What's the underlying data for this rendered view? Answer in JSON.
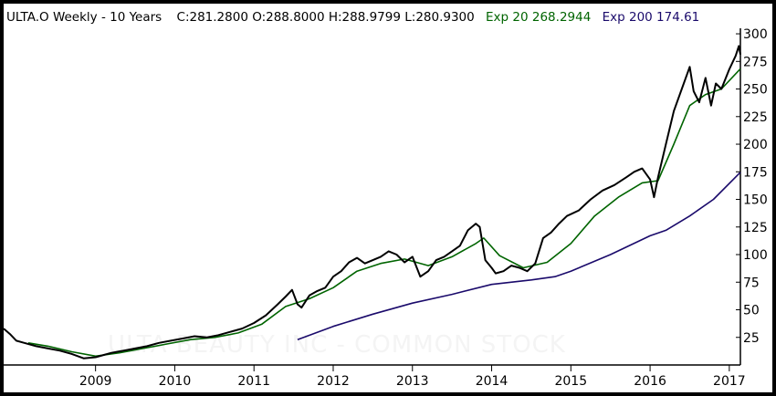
{
  "header": {
    "symbol_label": "ULTA.O Weekly -  10 Years",
    "ohlc_label": "C:281.2800 O:288.8000 H:288.9799 L:280.9300",
    "exp20_label": "Exp 20 268.2944",
    "exp200_label": "Exp 200 174.61",
    "exp20_color": "#006400",
    "exp200_color": "#1a0a6b",
    "text_color": "#000000"
  },
  "watermark": "ULTA BEAUTY INC - COMMON STOCK",
  "chart_data": {
    "type": "line",
    "title": "ULTA.O Weekly -  10 Years",
    "xlabel": "",
    "ylabel": "",
    "xlim": [
      2007.84,
      2017.14
    ],
    "ylim": [
      0,
      305
    ],
    "y_axis_position": "right",
    "grid": false,
    "x_ticks": [
      "2009",
      "2010",
      "2011",
      "2012",
      "2013",
      "2014",
      "2015",
      "2016",
      "2017"
    ],
    "y_ticks": [
      25,
      50,
      75,
      100,
      125,
      150,
      175,
      200,
      225,
      250,
      275,
      300
    ],
    "series": [
      {
        "name": "ULTA.O",
        "color": "#000000",
        "points": [
          [
            2007.84,
            33
          ],
          [
            2007.92,
            28
          ],
          [
            2008.0,
            22
          ],
          [
            2008.1,
            20
          ],
          [
            2008.25,
            17
          ],
          [
            2008.4,
            15
          ],
          [
            2008.55,
            13
          ],
          [
            2008.7,
            10
          ],
          [
            2008.85,
            6
          ],
          [
            2009.0,
            7
          ],
          [
            2009.1,
            9
          ],
          [
            2009.2,
            11
          ],
          [
            2009.35,
            13
          ],
          [
            2009.5,
            15
          ],
          [
            2009.65,
            17
          ],
          [
            2009.8,
            20
          ],
          [
            2009.95,
            22
          ],
          [
            2010.1,
            24
          ],
          [
            2010.25,
            26
          ],
          [
            2010.4,
            25
          ],
          [
            2010.55,
            27
          ],
          [
            2010.7,
            30
          ],
          [
            2010.85,
            33
          ],
          [
            2011.0,
            38
          ],
          [
            2011.15,
            45
          ],
          [
            2011.3,
            55
          ],
          [
            2011.4,
            62
          ],
          [
            2011.48,
            68
          ],
          [
            2011.55,
            55
          ],
          [
            2011.6,
            52
          ],
          [
            2011.7,
            63
          ],
          [
            2011.8,
            67
          ],
          [
            2011.9,
            70
          ],
          [
            2012.0,
            80
          ],
          [
            2012.1,
            85
          ],
          [
            2012.2,
            93
          ],
          [
            2012.3,
            97
          ],
          [
            2012.4,
            92
          ],
          [
            2012.5,
            95
          ],
          [
            2012.6,
            98
          ],
          [
            2012.7,
            103
          ],
          [
            2012.8,
            100
          ],
          [
            2012.9,
            93
          ],
          [
            2013.0,
            98
          ],
          [
            2013.1,
            80
          ],
          [
            2013.2,
            85
          ],
          [
            2013.3,
            95
          ],
          [
            2013.4,
            98
          ],
          [
            2013.5,
            103
          ],
          [
            2013.6,
            108
          ],
          [
            2013.7,
            122
          ],
          [
            2013.8,
            128
          ],
          [
            2013.85,
            125
          ],
          [
            2013.92,
            95
          ],
          [
            2014.0,
            88
          ],
          [
            2014.05,
            83
          ],
          [
            2014.15,
            85
          ],
          [
            2014.25,
            90
          ],
          [
            2014.35,
            88
          ],
          [
            2014.45,
            85
          ],
          [
            2014.55,
            92
          ],
          [
            2014.65,
            115
          ],
          [
            2014.75,
            120
          ],
          [
            2014.85,
            128
          ],
          [
            2014.95,
            135
          ],
          [
            2015.1,
            140
          ],
          [
            2015.25,
            150
          ],
          [
            2015.4,
            158
          ],
          [
            2015.55,
            163
          ],
          [
            2015.7,
            170
          ],
          [
            2015.8,
            175
          ],
          [
            2015.9,
            178
          ],
          [
            2016.0,
            168
          ],
          [
            2016.05,
            152
          ],
          [
            2016.1,
            170
          ],
          [
            2016.2,
            200
          ],
          [
            2016.3,
            230
          ],
          [
            2016.4,
            250
          ],
          [
            2016.5,
            270
          ],
          [
            2016.55,
            248
          ],
          [
            2016.62,
            238
          ],
          [
            2016.7,
            260
          ],
          [
            2016.77,
            235
          ],
          [
            2016.83,
            255
          ],
          [
            2016.9,
            250
          ],
          [
            2017.0,
            268
          ],
          [
            2017.08,
            280
          ],
          [
            2017.12,
            289
          ],
          [
            2017.14,
            281.28
          ]
        ]
      },
      {
        "name": "Exp 20",
        "color": "#006400",
        "points": [
          [
            2008.15,
            20
          ],
          [
            2008.4,
            17
          ],
          [
            2008.7,
            12
          ],
          [
            2009.0,
            8
          ],
          [
            2009.3,
            11
          ],
          [
            2009.6,
            15
          ],
          [
            2009.9,
            19
          ],
          [
            2010.2,
            23
          ],
          [
            2010.5,
            25
          ],
          [
            2010.8,
            29
          ],
          [
            2011.1,
            37
          ],
          [
            2011.4,
            53
          ],
          [
            2011.7,
            60
          ],
          [
            2012.0,
            70
          ],
          [
            2012.3,
            85
          ],
          [
            2012.6,
            92
          ],
          [
            2012.9,
            96
          ],
          [
            2013.2,
            90
          ],
          [
            2013.5,
            98
          ],
          [
            2013.8,
            110
          ],
          [
            2013.9,
            115
          ],
          [
            2014.1,
            99
          ],
          [
            2014.4,
            88
          ],
          [
            2014.7,
            93
          ],
          [
            2015.0,
            110
          ],
          [
            2015.3,
            135
          ],
          [
            2015.6,
            152
          ],
          [
            2015.9,
            165
          ],
          [
            2016.1,
            167
          ],
          [
            2016.3,
            200
          ],
          [
            2016.5,
            235
          ],
          [
            2016.7,
            245
          ],
          [
            2016.9,
            250
          ],
          [
            2017.14,
            268.2944
          ]
        ]
      },
      {
        "name": "Exp 200",
        "color": "#1a0a6b",
        "points": [
          [
            2011.55,
            23
          ],
          [
            2012.0,
            35
          ],
          [
            2012.5,
            46
          ],
          [
            2013.0,
            56
          ],
          [
            2013.5,
            64
          ],
          [
            2014.0,
            73
          ],
          [
            2014.5,
            77
          ],
          [
            2014.8,
            80
          ],
          [
            2015.0,
            85
          ],
          [
            2015.5,
            100
          ],
          [
            2016.0,
            117
          ],
          [
            2016.2,
            122
          ],
          [
            2016.5,
            135
          ],
          [
            2016.8,
            150
          ],
          [
            2017.14,
            174.61
          ]
        ]
      }
    ]
  }
}
